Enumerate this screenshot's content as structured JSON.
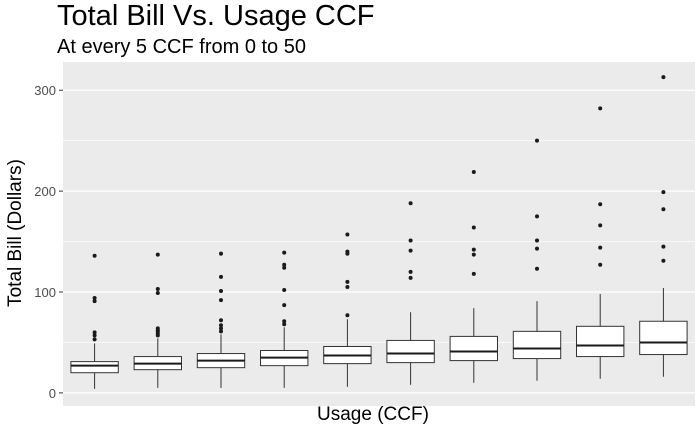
{
  "chart_data": {
    "type": "boxplot",
    "title": "Total Bill Vs. Usage CCF",
    "subtitle": "At every 5 CCF from 0 to 50",
    "xlabel": "Usage (CCF)",
    "ylabel": "Total Bill (Dollars)",
    "ylim": [
      -13,
      328
    ],
    "yticks": [
      0,
      100,
      200,
      300
    ],
    "x_tick_labels_shown": false,
    "grid": true,
    "background": "#EBEBEB",
    "grid_color": "#FFFFFF",
    "boxes": [
      {
        "min": 4,
        "q1": 20,
        "median": 27,
        "q3": 31,
        "max": 49,
        "outliers": [
          53,
          57,
          60,
          91,
          94,
          136
        ]
      },
      {
        "min": 5,
        "q1": 23,
        "median": 29,
        "q3": 36,
        "max": 54,
        "outliers": [
          57,
          59,
          61,
          62,
          64,
          99,
          103,
          137
        ]
      },
      {
        "min": 5,
        "q1": 25,
        "median": 32,
        "q3": 39,
        "max": 58,
        "outliers": [
          61,
          64,
          67,
          72,
          92,
          101,
          115,
          138
        ]
      },
      {
        "min": 5,
        "q1": 27,
        "median": 35,
        "q3": 42,
        "max": 65,
        "outliers": [
          68,
          71,
          87,
          102,
          124,
          127,
          139
        ]
      },
      {
        "min": 6,
        "q1": 29,
        "median": 37,
        "q3": 46,
        "max": 73,
        "outliers": [
          77,
          105,
          110,
          138,
          140,
          157
        ]
      },
      {
        "min": 8,
        "q1": 30,
        "median": 39,
        "q3": 52,
        "max": 80,
        "outliers": [
          114,
          120,
          141,
          151,
          188
        ]
      },
      {
        "min": 10,
        "q1": 32,
        "median": 41,
        "q3": 56,
        "max": 84,
        "outliers": [
          118,
          137,
          142,
          164,
          219
        ]
      },
      {
        "min": 12,
        "q1": 34,
        "median": 44,
        "q3": 61,
        "max": 91,
        "outliers": [
          123,
          143,
          151,
          175,
          250
        ]
      },
      {
        "min": 14,
        "q1": 36,
        "median": 47,
        "q3": 66,
        "max": 98,
        "outliers": [
          127,
          144,
          166,
          187,
          282
        ]
      },
      {
        "min": 16,
        "q1": 38,
        "median": 50,
        "q3": 71,
        "max": 104,
        "outliers": [
          131,
          145,
          182,
          199,
          313
        ]
      }
    ]
  }
}
